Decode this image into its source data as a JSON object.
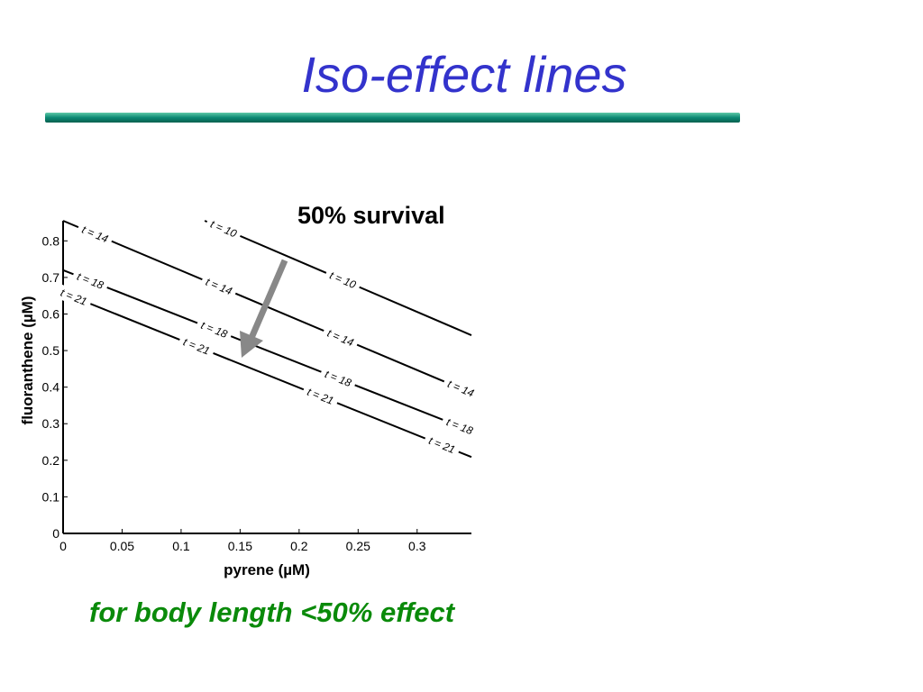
{
  "slide": {
    "title": "Iso-effect lines",
    "subtitle": "50% survival",
    "footer": "for body length <50% effect",
    "title_color": "#3333cc",
    "footer_color": "#0a8a0a",
    "bar_color": "#0c8a74"
  },
  "chart_data": {
    "type": "line",
    "title": "50% survival",
    "xlabel": "pyrene (µM)",
    "ylabel": "fluoranthene (µM)",
    "xlim": [
      0,
      0.346
    ],
    "ylim": [
      0,
      0.855
    ],
    "xticks": [
      "0",
      "0.05",
      "0.1",
      "0.15",
      "0.2",
      "0.25",
      "0.3"
    ],
    "yticks": [
      "0",
      "0.1",
      "0.2",
      "0.3",
      "0.4",
      "0.5",
      "0.6",
      "0.7",
      "0.8"
    ],
    "grid": false,
    "series": [
      {
        "name": "t = 10",
        "x": [
          0.12,
          0.346
        ],
        "y": [
          0.855,
          0.542
        ],
        "label_x": [
          0.136,
          0.237
        ]
      },
      {
        "name": "t = 14",
        "x": [
          0,
          0.346
        ],
        "y": [
          0.855,
          0.384
        ],
        "label_x": [
          0.027,
          0.132,
          0.235,
          0.337
        ]
      },
      {
        "name": "t = 18",
        "x": [
          0,
          0.346
        ],
        "y": [
          0.72,
          0.28
        ],
        "label_x": [
          0.023,
          0.128,
          0.233,
          0.336
        ]
      },
      {
        "name": "t = 21",
        "x": [
          0,
          0.346
        ],
        "y": [
          0.658,
          0.209
        ],
        "label_x": [
          0.009,
          0.113,
          0.218,
          0.321
        ]
      }
    ],
    "annotation": {
      "type": "arrow",
      "color": "#888888",
      "meaning": "increasing time"
    }
  }
}
